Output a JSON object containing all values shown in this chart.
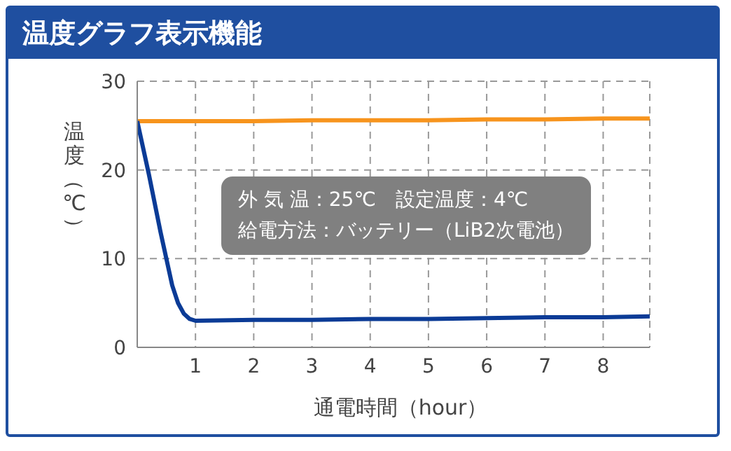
{
  "chart_data": {
    "type": "line",
    "title": "温度グラフ表示機能",
    "xlabel": "通電時間（hour）",
    "ylabel": "温度（℃）",
    "annotations": [
      "外 気 温：25℃　設定温度：4℃",
      "給電方法：バッテリー（LiB2次電池）"
    ],
    "series": [
      {
        "color": "#f7941d",
        "x": [
          0,
          1,
          2,
          3,
          4,
          5,
          6,
          7,
          8,
          8.8
        ],
        "values": [
          25.5,
          25.5,
          25.5,
          25.6,
          25.6,
          25.6,
          25.7,
          25.7,
          25.8,
          25.8
        ]
      },
      {
        "color": "#0b3b96",
        "x": [
          0,
          0.2,
          0.4,
          0.6,
          0.7,
          0.8,
          0.9,
          1,
          2,
          3,
          4,
          5,
          6,
          7,
          8,
          8.8
        ],
        "values": [
          25.5,
          19.5,
          13,
          7,
          5,
          3.8,
          3.2,
          3.0,
          3.1,
          3.1,
          3.2,
          3.2,
          3.3,
          3.4,
          3.4,
          3.5
        ]
      }
    ],
    "xlim": [
      0,
      8.8
    ],
    "xticks": [
      1,
      2,
      3,
      4,
      5,
      6,
      7,
      8
    ],
    "ylim": [
      0,
      30
    ],
    "yticks": [
      0,
      10,
      20,
      30
    ],
    "grid": true
  }
}
